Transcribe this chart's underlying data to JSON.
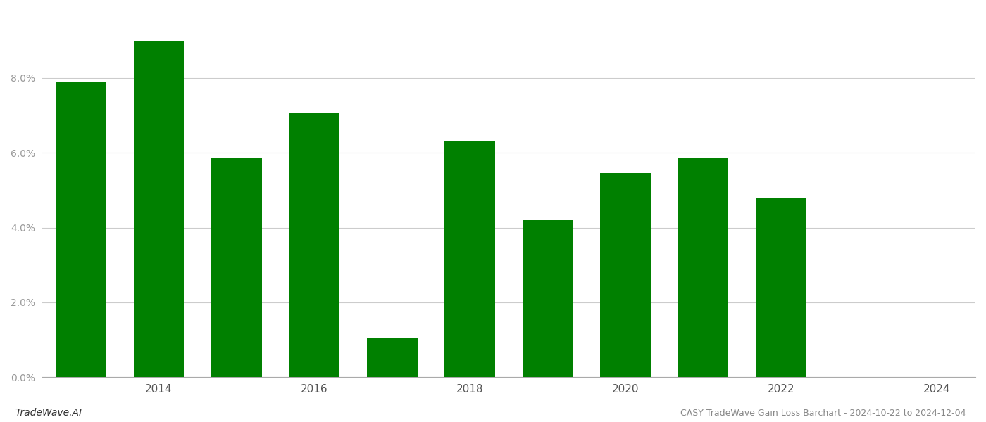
{
  "years": [
    2013,
    2014,
    2015,
    2016,
    2017,
    2018,
    2019,
    2020,
    2021,
    2022,
    2023
  ],
  "values": [
    0.079,
    0.09,
    0.0585,
    0.0705,
    0.0105,
    0.063,
    0.042,
    0.0545,
    0.0585,
    0.048,
    0.0
  ],
  "bar_color": "#008000",
  "background_color": "#ffffff",
  "ylim": [
    0,
    0.098
  ],
  "yticks": [
    0.0,
    0.02,
    0.04,
    0.06,
    0.08
  ],
  "xlim": [
    2012.5,
    2024.5
  ],
  "xticks": [
    2014,
    2016,
    2018,
    2020,
    2022,
    2024
  ],
  "title": "CASY TradeWave Gain Loss Barchart - 2024-10-22 to 2024-12-04",
  "footer_left": "TradeWave.AI",
  "grid_color": "#cccccc",
  "bar_width": 0.65
}
